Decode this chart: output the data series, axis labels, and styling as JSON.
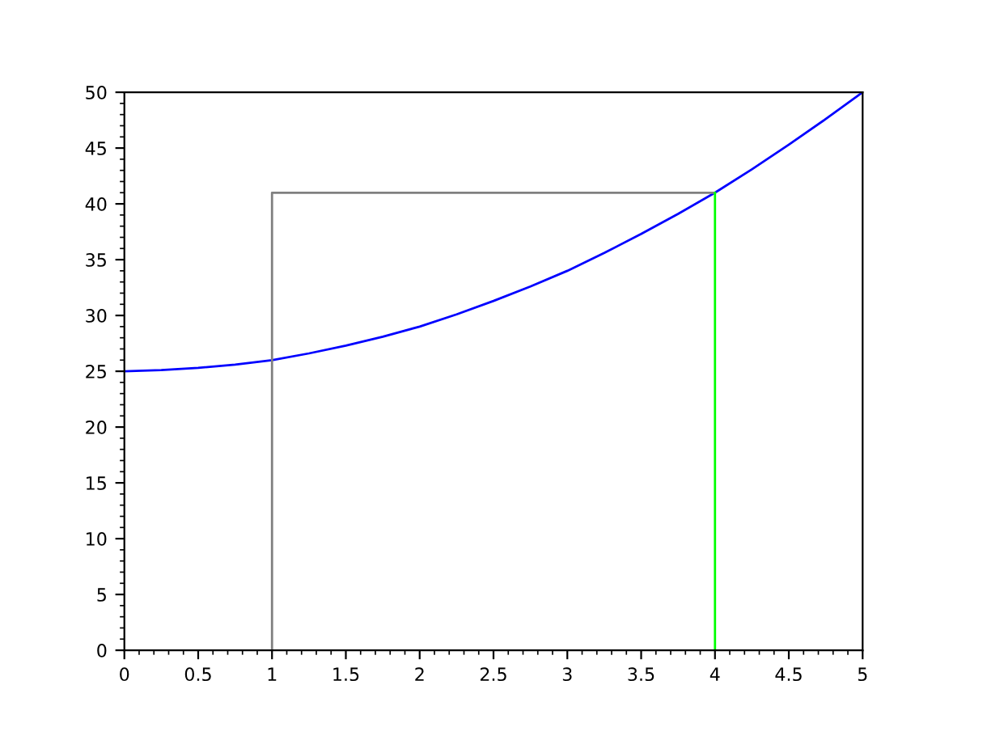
{
  "chart_data": {
    "type": "line",
    "xlim": [
      0,
      5
    ],
    "ylim": [
      0,
      50
    ],
    "xticks": [
      0,
      0.5,
      1,
      1.5,
      2,
      2.5,
      3,
      3.5,
      4,
      4.5,
      5
    ],
    "yticks": [
      0,
      5,
      10,
      15,
      20,
      25,
      30,
      35,
      40,
      45,
      50
    ],
    "grid": false,
    "legend": false,
    "series": [
      {
        "color": "#0000ff",
        "x": [
          0,
          0.25,
          0.5,
          0.75,
          1,
          1.25,
          1.5,
          1.75,
          2,
          2.25,
          2.5,
          2.75,
          3,
          3.25,
          3.5,
          3.75,
          4,
          4.25,
          4.5,
          4.75,
          5
        ],
        "values": [
          25,
          25.1,
          25.3,
          25.6,
          26,
          26.6,
          27.3,
          28.1,
          29,
          30.1,
          31.3,
          32.6,
          34,
          35.6,
          37.3,
          39.1,
          41,
          43.1,
          45.3,
          47.6,
          50
        ]
      },
      {
        "color": "#808080",
        "x": [
          1,
          1,
          4
        ],
        "values": [
          0,
          41,
          41
        ]
      },
      {
        "color": "#00ff00",
        "x": [
          4,
          4
        ],
        "values": [
          0,
          41
        ]
      }
    ]
  }
}
